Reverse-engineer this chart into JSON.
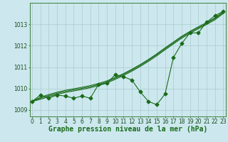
{
  "xlabel": "Graphe pression niveau de la mer (hPa)",
  "background_color": "#cce8ee",
  "grid_color": "#aacccc",
  "line_color": "#1a6b1a",
  "x_values": [
    0,
    1,
    2,
    3,
    4,
    5,
    6,
    7,
    8,
    9,
    10,
    11,
    12,
    13,
    14,
    15,
    16,
    17,
    18,
    19,
    20,
    21,
    22,
    23
  ],
  "y_main": [
    1009.4,
    1009.7,
    1009.55,
    1009.7,
    1009.65,
    1009.55,
    1009.65,
    1009.55,
    1010.2,
    1010.25,
    1010.65,
    1010.55,
    1010.4,
    1009.85,
    1009.4,
    1009.25,
    1009.75,
    1011.45,
    1012.1,
    1012.6,
    1012.6,
    1013.1,
    1013.4,
    1013.6
  ],
  "y_smooth1": [
    1009.4,
    1009.6,
    1009.72,
    1009.83,
    1009.92,
    1009.99,
    1010.06,
    1010.14,
    1010.24,
    1010.36,
    1010.52,
    1010.7,
    1010.9,
    1011.12,
    1011.36,
    1011.62,
    1011.9,
    1012.17,
    1012.44,
    1012.67,
    1012.88,
    1013.08,
    1013.3,
    1013.58
  ],
  "y_smooth2": [
    1009.4,
    1009.55,
    1009.67,
    1009.78,
    1009.87,
    1009.94,
    1010.01,
    1010.09,
    1010.19,
    1010.31,
    1010.48,
    1010.66,
    1010.86,
    1011.08,
    1011.32,
    1011.58,
    1011.86,
    1012.13,
    1012.4,
    1012.63,
    1012.84,
    1013.04,
    1013.26,
    1013.55
  ],
  "y_smooth3": [
    1009.4,
    1009.5,
    1009.62,
    1009.73,
    1009.82,
    1009.89,
    1009.96,
    1010.04,
    1010.14,
    1010.26,
    1010.43,
    1010.61,
    1010.81,
    1011.03,
    1011.27,
    1011.53,
    1011.81,
    1012.08,
    1012.35,
    1012.58,
    1012.79,
    1012.99,
    1013.21,
    1013.5
  ],
  "ylim": [
    1008.7,
    1014.0
  ],
  "yticks": [
    1009,
    1010,
    1011,
    1012,
    1013
  ],
  "xticks": [
    0,
    1,
    2,
    3,
    4,
    5,
    6,
    7,
    8,
    9,
    10,
    11,
    12,
    13,
    14,
    15,
    16,
    17,
    18,
    19,
    20,
    21,
    22,
    23
  ],
  "marker_size": 2.5,
  "line_width": 0.8,
  "xlabel_fontsize": 7,
  "tick_fontsize": 5.5
}
